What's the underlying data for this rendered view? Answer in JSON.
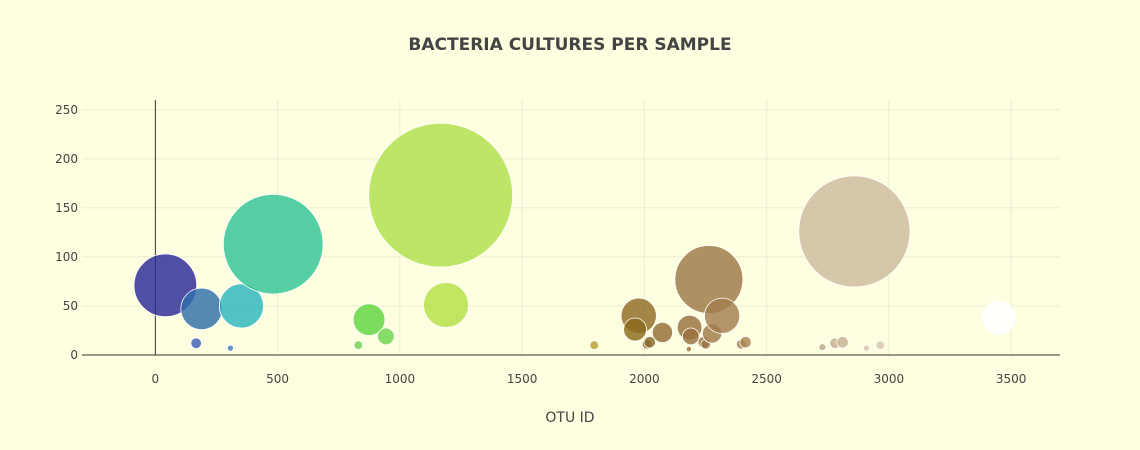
{
  "chart_data": {
    "type": "scatter",
    "subtype": "bubble",
    "title": "BACTERIA CULTURES PER SAMPLE",
    "xlabel": "OTU ID",
    "ylabel": "",
    "xlim": [
      -300,
      3700
    ],
    "ylim": [
      0,
      260
    ],
    "x_ticks": [
      0,
      500,
      1000,
      1500,
      2000,
      2500,
      3000,
      3500
    ],
    "y_ticks": [
      0,
      50,
      100,
      150,
      200,
      250
    ],
    "grid": true,
    "legend": "none",
    "points": [
      {
        "x": 41,
        "y": 71,
        "color": "#2a2896",
        "opacity": 0.82
      },
      {
        "x": 189,
        "y": 47,
        "color": "#2f6ea8",
        "opacity": 0.82
      },
      {
        "x": 167,
        "y": 12,
        "color": "#3a5fb5",
        "opacity": 0.82
      },
      {
        "x": 307,
        "y": 7,
        "color": "#3a7fc0",
        "opacity": 0.82
      },
      {
        "x": 352,
        "y": 50,
        "color": "#2bb6be",
        "opacity": 0.82
      },
      {
        "x": 482,
        "y": 113,
        "color": "#2fc495",
        "opacity": 0.82
      },
      {
        "x": 830,
        "y": 10,
        "color": "#6fd44e",
        "opacity": 0.82
      },
      {
        "x": 874,
        "y": 36,
        "color": "#5fd43e",
        "opacity": 0.82
      },
      {
        "x": 943,
        "y": 19,
        "color": "#6ad44c",
        "opacity": 0.82
      },
      {
        "x": 1167,
        "y": 163,
        "color": "#aee04a",
        "opacity": 0.82
      },
      {
        "x": 1189,
        "y": 51,
        "color": "#b4e046",
        "opacity": 0.82
      },
      {
        "x": 1795,
        "y": 10,
        "color": "#b5a033",
        "opacity": 0.82
      },
      {
        "x": 1977,
        "y": 40,
        "color": "#8f6a22",
        "opacity": 0.82
      },
      {
        "x": 1962,
        "y": 26,
        "color": "#8a6a1c",
        "opacity": 0.82
      },
      {
        "x": 2011,
        "y": 11,
        "color": "#8a6a2a",
        "opacity": 0.82
      },
      {
        "x": 2022,
        "y": 13,
        "color": "#8a6a2a",
        "opacity": 0.82
      },
      {
        "x": 2074,
        "y": 23,
        "color": "#946d33",
        "opacity": 0.82
      },
      {
        "x": 2185,
        "y": 28,
        "color": "#98703c",
        "opacity": 0.82
      },
      {
        "x": 2190,
        "y": 19,
        "color": "#98703c",
        "opacity": 0.82
      },
      {
        "x": 2182,
        "y": 6,
        "color": "#98703c",
        "opacity": 0.82
      },
      {
        "x": 2243,
        "y": 13,
        "color": "#9a7442",
        "opacity": 0.82
      },
      {
        "x": 2251,
        "y": 11,
        "color": "#9a7442",
        "opacity": 0.82
      },
      {
        "x": 2264,
        "y": 77,
        "color": "#9e7846",
        "opacity": 0.82
      },
      {
        "x": 2277,
        "y": 22,
        "color": "#a07a48",
        "opacity": 0.82
      },
      {
        "x": 2318,
        "y": 40,
        "color": "#a27e4e",
        "opacity": 0.82
      },
      {
        "x": 2396,
        "y": 11,
        "color": "#a88452",
        "opacity": 0.82
      },
      {
        "x": 2414,
        "y": 13,
        "color": "#a88452",
        "opacity": 0.82
      },
      {
        "x": 2728,
        "y": 8,
        "color": "#c0a886",
        "opacity": 0.82
      },
      {
        "x": 2780,
        "y": 12,
        "color": "#c6ae8e",
        "opacity": 0.82
      },
      {
        "x": 2811,
        "y": 13,
        "color": "#c8b292",
        "opacity": 0.82
      },
      {
        "x": 2859,
        "y": 126,
        "color": "#cdbb9e",
        "opacity": 0.82
      },
      {
        "x": 2908,
        "y": 7,
        "color": "#d4c4aa",
        "opacity": 0.82
      },
      {
        "x": 2965,
        "y": 10,
        "color": "#d6c8b0",
        "opacity": 0.82
      },
      {
        "x": 3450,
        "y": 38,
        "color": "#ffffff",
        "opacity": 0.85
      }
    ]
  }
}
